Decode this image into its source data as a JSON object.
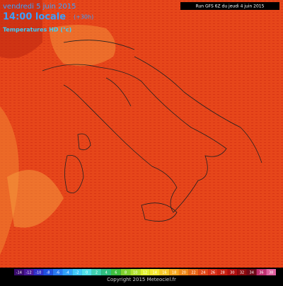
{
  "header": {
    "date": "vendredi 5 juin 2015",
    "time": "14:00 locale",
    "offset": "(+30h)",
    "product": "Temperatures HD (°c)",
    "run": "Run GFS 6Z du jeudi 4 juin 2015"
  },
  "legend": {
    "labels": [
      "-14",
      "-12",
      "-10",
      "-8",
      "-6",
      "-4",
      "-2",
      "0",
      "2",
      "4",
      "6",
      "8",
      "10",
      "12",
      "14",
      "16",
      "18",
      "20",
      "22",
      "24",
      "26",
      "28",
      "30",
      "32",
      "34",
      "36",
      "38"
    ],
    "colors": [
      "#3a0c6e",
      "#4b1a9c",
      "#3030c8",
      "#2050e0",
      "#2878f0",
      "#30a0f8",
      "#40c8f8",
      "#50e0e8",
      "#40d0b0",
      "#30c080",
      "#40c040",
      "#80d030",
      "#b0e030",
      "#e0f030",
      "#f8e830",
      "#f8c828",
      "#f8a820",
      "#f08818",
      "#e86818",
      "#e04818",
      "#d83018",
      "#c82010",
      "#b01010",
      "#900c10",
      "#700a18",
      "#c03070",
      "#e060a0"
    ]
  },
  "footer": {
    "copyright": "Copyright 2015 Meteociel.fr"
  }
}
